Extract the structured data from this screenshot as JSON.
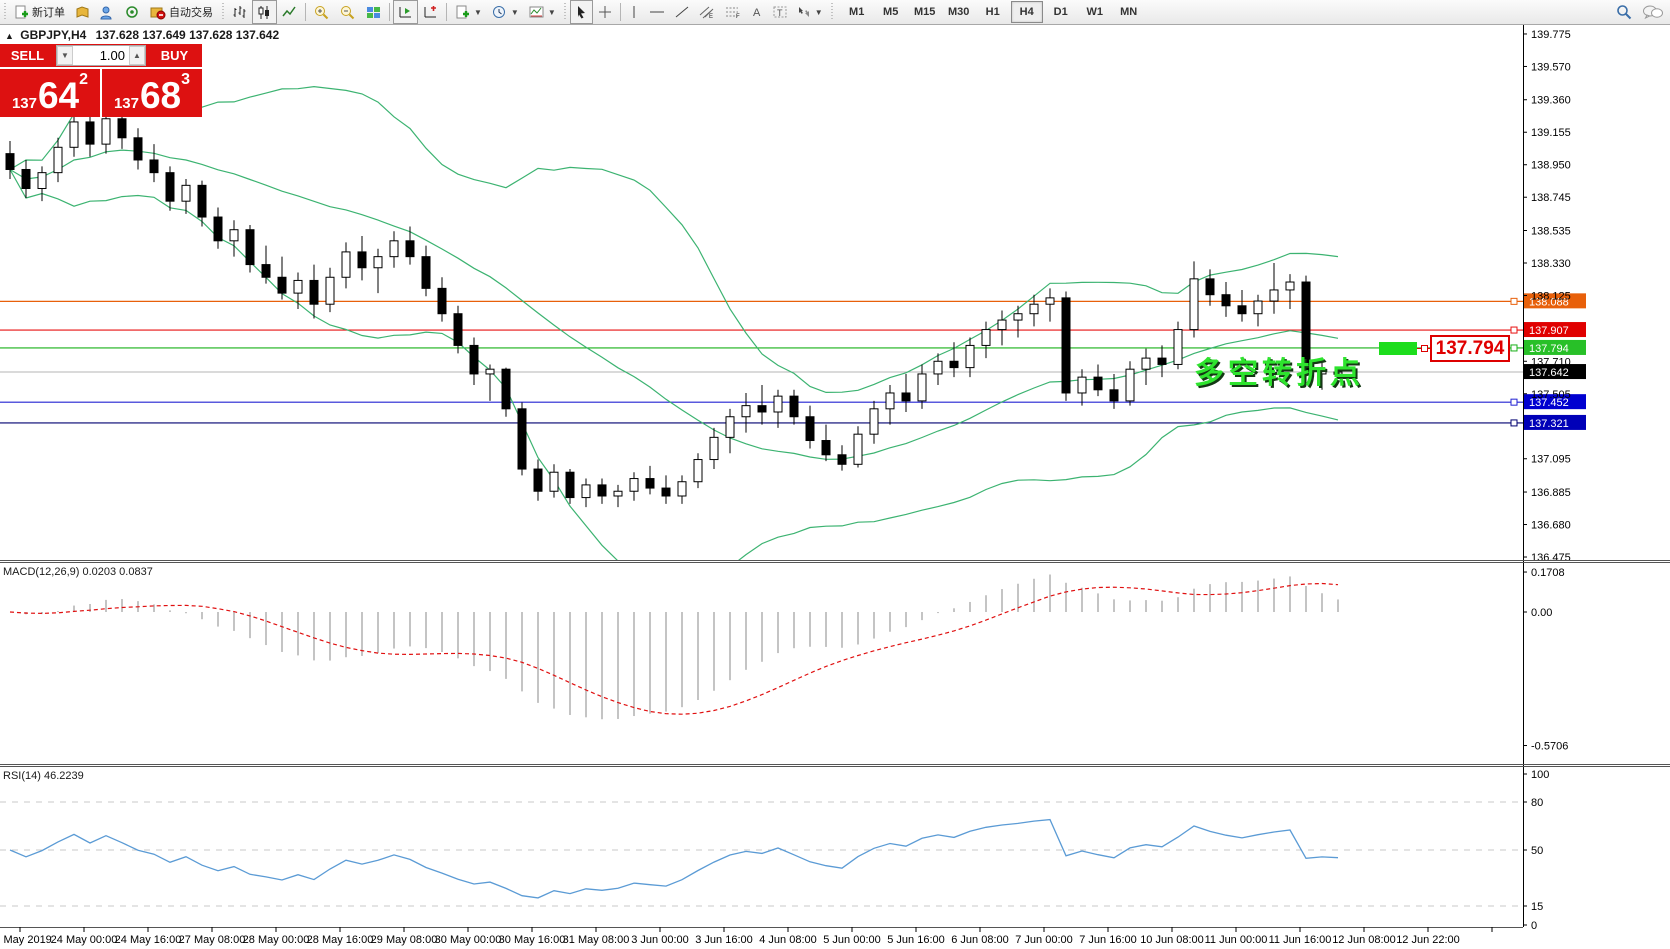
{
  "toolbar": {
    "new_order": "新订单",
    "auto_trading": "自动交易",
    "timeframes": [
      "M1",
      "M5",
      "M15",
      "M30",
      "H1",
      "H4",
      "D1",
      "W1",
      "MN"
    ],
    "active_timeframe": "H4"
  },
  "chart": {
    "title": "GBPJPY,H4",
    "ohlc": "137.628 137.649 137.628 137.642",
    "direction_symbol": "▲",
    "one_click": {
      "sell_label": "SELL",
      "buy_label": "BUY",
      "volume": "1.00",
      "sell_base": "137",
      "sell_big": "64",
      "sell_sup": "2",
      "buy_base": "137",
      "buy_big": "68",
      "buy_sup": "3"
    },
    "annotation": "多空转折点",
    "price_label_box": "137.794",
    "colors": {
      "bollinger": "#3cb371",
      "bull_body": "#ffffff",
      "bear_body": "#000000",
      "current_price_line": "#b4b4b4"
    },
    "y_ticks": [
      "139.775",
      "139.570",
      "139.360",
      "139.155",
      "138.950",
      "138.745",
      "138.535",
      "138.330",
      "138.125",
      "137.710",
      "137.505",
      "137.095",
      "136.885",
      "136.680",
      "136.475"
    ],
    "hlines": [
      {
        "price": 138.088,
        "label": "138.088",
        "color": "#e8600a",
        "label_bg": "#e8600a"
      },
      {
        "price": 137.907,
        "label": "137.907",
        "color": "#e81010",
        "label_bg": "#e00000"
      },
      {
        "price": 137.794,
        "label": "137.794",
        "color": "#18b018",
        "label_bg": "#28c028"
      },
      {
        "price": 137.452,
        "label": "137.452",
        "color": "#2222d2",
        "label_bg": "#0000d0"
      },
      {
        "price": 137.321,
        "label": "137.321",
        "color": "#000070",
        "label_bg": "#0000b8"
      }
    ],
    "current_price": {
      "price": 137.642,
      "label": "137.642"
    },
    "time_labels": [
      "23 May 2019",
      "24 May 00:00",
      "24 May 16:00",
      "27 May 08:00",
      "28 May 00:00",
      "28 May 16:00",
      "29 May 08:00",
      "30 May 00:00",
      "30 May 16:00",
      "31 May 08:00",
      "3 Jun 00:00",
      "3 Jun 16:00",
      "4 Jun 08:00",
      "5 Jun 00:00",
      "5 Jun 16:00",
      "6 Jun 08:00",
      "7 Jun 00:00",
      "7 Jun 16:00",
      "10 Jun 08:00",
      "11 Jun 00:00",
      "11 Jun 16:00",
      "12 Jun 08:00",
      "12 Jun 22:00"
    ],
    "candles": [
      [
        139.02,
        139.1,
        138.86,
        138.92
      ],
      [
        138.92,
        138.98,
        138.74,
        138.8
      ],
      [
        138.8,
        138.94,
        138.72,
        138.9
      ],
      [
        138.9,
        139.12,
        138.84,
        139.06
      ],
      [
        139.06,
        139.3,
        139.0,
        139.22
      ],
      [
        139.22,
        139.32,
        139.0,
        139.08
      ],
      [
        139.08,
        139.28,
        139.02,
        139.24
      ],
      [
        139.24,
        139.3,
        139.05,
        139.12
      ],
      [
        139.12,
        139.18,
        138.92,
        138.98
      ],
      [
        138.98,
        139.08,
        138.84,
        138.9
      ],
      [
        138.9,
        138.94,
        138.66,
        138.72
      ],
      [
        138.72,
        138.86,
        138.64,
        138.82
      ],
      [
        138.82,
        138.85,
        138.56,
        138.62
      ],
      [
        138.62,
        138.68,
        138.42,
        138.47
      ],
      [
        138.47,
        138.6,
        138.37,
        138.54
      ],
      [
        138.54,
        138.57,
        138.27,
        138.32
      ],
      [
        138.32,
        138.44,
        138.2,
        138.24
      ],
      [
        138.24,
        138.37,
        138.1,
        138.14
      ],
      [
        138.14,
        138.27,
        138.04,
        138.22
      ],
      [
        138.22,
        138.32,
        137.98,
        138.07
      ],
      [
        138.07,
        138.3,
        138.02,
        138.24
      ],
      [
        138.24,
        138.46,
        138.17,
        138.4
      ],
      [
        138.4,
        138.5,
        138.22,
        138.3
      ],
      [
        138.3,
        138.42,
        138.14,
        138.37
      ],
      [
        138.37,
        138.53,
        138.3,
        138.47
      ],
      [
        138.47,
        138.56,
        138.32,
        138.37
      ],
      [
        138.37,
        138.44,
        138.12,
        138.17
      ],
      [
        138.17,
        138.24,
        137.96,
        138.01
      ],
      [
        138.01,
        138.06,
        137.76,
        137.81
      ],
      [
        137.81,
        137.86,
        137.56,
        137.63
      ],
      [
        137.63,
        137.69,
        137.46,
        137.66
      ],
      [
        137.66,
        137.67,
        137.36,
        137.41
      ],
      [
        137.41,
        137.45,
        136.99,
        137.03
      ],
      [
        137.03,
        137.09,
        136.83,
        136.89
      ],
      [
        136.89,
        137.06,
        136.85,
        137.01
      ],
      [
        137.01,
        137.03,
        136.81,
        136.85
      ],
      [
        136.85,
        136.97,
        136.79,
        136.93
      ],
      [
        136.93,
        136.97,
        136.81,
        136.86
      ],
      [
        136.86,
        136.93,
        136.79,
        136.89
      ],
      [
        136.89,
        137.01,
        136.83,
        136.97
      ],
      [
        136.97,
        137.05,
        136.87,
        136.91
      ],
      [
        136.91,
        136.99,
        136.81,
        136.86
      ],
      [
        136.86,
        136.99,
        136.81,
        136.95
      ],
      [
        136.95,
        137.13,
        136.91,
        137.09
      ],
      [
        137.09,
        137.29,
        137.03,
        137.23
      ],
      [
        137.23,
        137.41,
        137.13,
        137.36
      ],
      [
        137.36,
        137.51,
        137.26,
        137.43
      ],
      [
        137.43,
        137.56,
        137.31,
        137.39
      ],
      [
        137.39,
        137.53,
        137.29,
        137.49
      ],
      [
        137.49,
        137.53,
        137.31,
        137.36
      ],
      [
        137.36,
        137.43,
        137.16,
        137.21
      ],
      [
        137.21,
        137.31,
        137.08,
        137.12
      ],
      [
        137.12,
        137.18,
        137.02,
        137.06
      ],
      [
        137.06,
        137.3,
        137.04,
        137.25
      ],
      [
        137.25,
        137.46,
        137.19,
        137.41
      ],
      [
        137.41,
        137.56,
        137.31,
        137.51
      ],
      [
        137.51,
        137.63,
        137.39,
        137.46
      ],
      [
        137.46,
        137.69,
        137.41,
        137.63
      ],
      [
        137.63,
        137.76,
        137.56,
        137.71
      ],
      [
        137.71,
        137.83,
        137.61,
        137.67
      ],
      [
        137.67,
        137.86,
        137.61,
        137.81
      ],
      [
        137.81,
        137.96,
        137.73,
        137.91
      ],
      [
        137.91,
        138.03,
        137.81,
        137.97
      ],
      [
        137.97,
        138.06,
        137.86,
        138.01
      ],
      [
        138.01,
        138.13,
        137.93,
        138.07
      ],
      [
        138.07,
        138.17,
        137.96,
        138.11
      ],
      [
        138.11,
        138.15,
        137.46,
        137.51
      ],
      [
        137.51,
        137.66,
        137.43,
        137.61
      ],
      [
        137.61,
        137.69,
        137.49,
        137.53
      ],
      [
        137.53,
        137.63,
        137.41,
        137.46
      ],
      [
        137.46,
        137.71,
        137.43,
        137.66
      ],
      [
        137.66,
        137.79,
        137.56,
        137.73
      ],
      [
        137.73,
        137.81,
        137.61,
        137.69
      ],
      [
        137.69,
        137.96,
        137.66,
        137.91
      ],
      [
        137.91,
        138.34,
        137.86,
        138.23
      ],
      [
        138.23,
        138.29,
        138.06,
        138.13
      ],
      [
        138.13,
        138.21,
        137.99,
        138.06
      ],
      [
        138.06,
        138.16,
        137.96,
        138.01
      ],
      [
        138.01,
        138.13,
        137.93,
        138.09
      ],
      [
        138.09,
        138.33,
        138.01,
        138.16
      ],
      [
        138.16,
        138.26,
        138.04,
        138.21
      ],
      [
        138.21,
        138.25,
        137.58,
        137.63
      ],
      [
        137.63,
        137.71,
        137.53,
        137.66
      ],
      [
        137.628,
        137.649,
        137.628,
        137.642
      ]
    ],
    "bollinger_params": {
      "period": 20,
      "deviation": 2
    }
  },
  "macd": {
    "label": "MACD(12,26,9) 0.0203 0.0837",
    "params": {
      "fast": 12,
      "slow": 26,
      "signal": 9
    },
    "ticks": [
      {
        "v": 0.1708,
        "label": "0.1708"
      },
      {
        "v": 0,
        "label": "0.00"
      },
      {
        "v": -0.5706,
        "label": "-0.5706"
      }
    ],
    "histogram_color": "#c4c4c4",
    "signal_color": "#e01010"
  },
  "rsi": {
    "label": "RSI(14) 46.2239",
    "period": 14,
    "ticks": [
      {
        "v": 100,
        "label": "100"
      },
      {
        "v": 80,
        "label": "80"
      },
      {
        "v": 50,
        "label": "50"
      },
      {
        "v": 15,
        "label": "15"
      },
      {
        "v": 0,
        "label": "0"
      }
    ],
    "levels": [
      80,
      50,
      15
    ],
    "line_color": "#5b9bd5"
  }
}
